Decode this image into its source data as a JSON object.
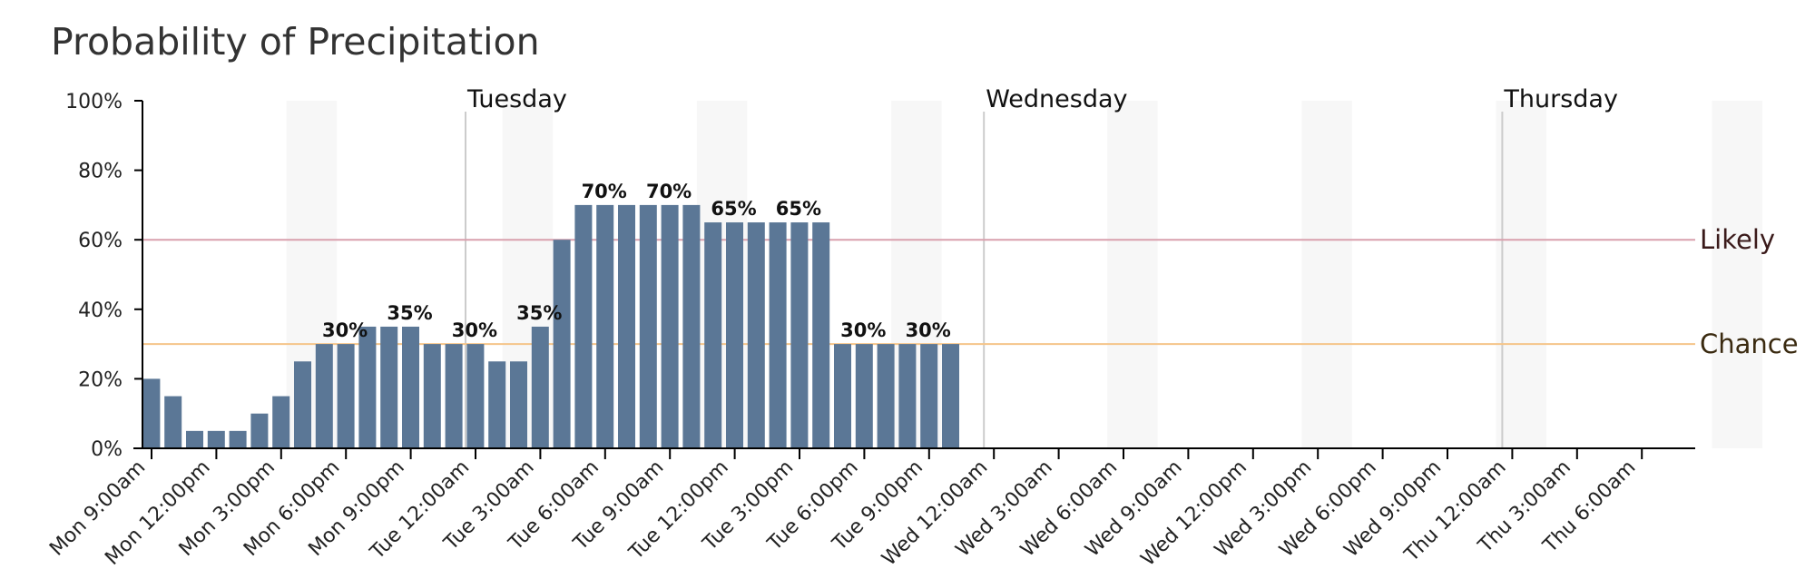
{
  "title": "Probability of Precipitation",
  "chart_data": {
    "type": "bar",
    "title": "Probability of Precipitation",
    "xlabel": "",
    "ylabel": "",
    "ylim": [
      0,
      100
    ],
    "y_ticks": [
      "0%",
      "20%",
      "40%",
      "60%",
      "80%",
      "100%"
    ],
    "x_ticks": [
      "Mon 9:00am",
      "Mon 12:00pm",
      "Mon 3:00pm",
      "Mon 6:00pm",
      "Mon 9:00pm",
      "Tue 12:00am",
      "Tue 3:00am",
      "Tue 6:00am",
      "Tue 9:00am",
      "Tue 12:00pm",
      "Tue 3:00pm",
      "Tue 6:00pm",
      "Tue 9:00pm",
      "Wed 12:00am",
      "Wed 3:00am",
      "Wed 6:00am",
      "Wed 9:00am",
      "Wed 12:00pm",
      "Wed 3:00pm",
      "Wed 6:00pm",
      "Wed 9:00pm",
      "Thu 12:00am",
      "Thu 3:00am",
      "Thu 6:00am"
    ],
    "day_labels": [
      "Tuesday",
      "Wednesday",
      "Thursday"
    ],
    "values": [
      20,
      15,
      5,
      5,
      5,
      10,
      15,
      25,
      30,
      30,
      35,
      35,
      35,
      30,
      30,
      30,
      25,
      25,
      35,
      60,
      70,
      70,
      70,
      70,
      70,
      70,
      65,
      65,
      65,
      65,
      65,
      65,
      30,
      30,
      30,
      30,
      30,
      30
    ],
    "data_labels": [
      {
        "index": 9,
        "text": "30%"
      },
      {
        "index": 12,
        "text": "35%"
      },
      {
        "index": 15,
        "text": "30%"
      },
      {
        "index": 18,
        "text": "35%"
      },
      {
        "index": 21,
        "text": "70%"
      },
      {
        "index": 24,
        "text": "70%"
      },
      {
        "index": 27,
        "text": "65%"
      },
      {
        "index": 30,
        "text": "65%"
      },
      {
        "index": 33,
        "text": "30%"
      },
      {
        "index": 36,
        "text": "30%"
      }
    ],
    "thresholds": [
      {
        "label": "Likely",
        "value": 60,
        "color": "#d9a0ad",
        "text_color": "#3a1a1a"
      },
      {
        "label": "Chance",
        "value": 30,
        "color": "#f5c58a",
        "text_color": "#3a2a10"
      }
    ],
    "bar_color": "#5b7796",
    "grid": false,
    "legend": "none"
  }
}
